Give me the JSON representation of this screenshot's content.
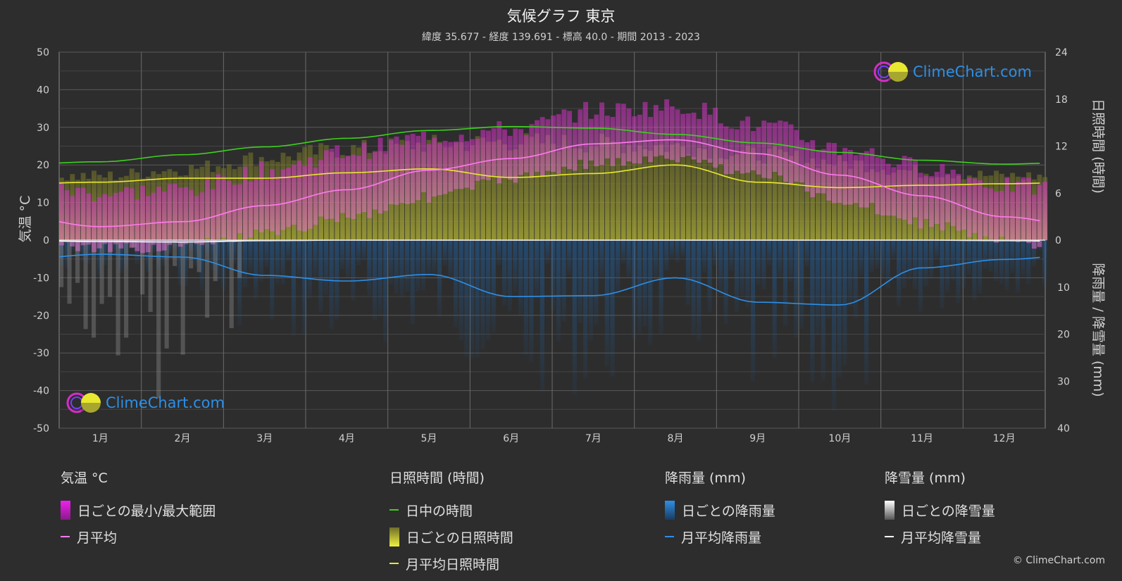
{
  "title": "気候グラフ 東京",
  "subtitle": "緯度 35.677 - 経度 139.691 - 標高 40.0 - 期間 2013 - 2023",
  "copyright": "© ClimeChart.com",
  "logo_text": "ClimeChart.com",
  "colors": {
    "background": "#2d2d2d",
    "grid": "#5a5a5a",
    "daylight": "#3ecf1e",
    "sunshine_daily": "#9e9e32",
    "sunshine_monthly": "#e8e830",
    "temp_range": "#d42ec8",
    "temp_mean": "#ff7af0",
    "rain_daily": "#1e5fa0",
    "rain_monthly": "#2e8fe6",
    "snow_daily": "#9a9a9a",
    "snow_monthly": "#ffffff"
  },
  "chart_data": {
    "type": "line",
    "months": [
      "1月",
      "2月",
      "3月",
      "4月",
      "5月",
      "6月",
      "7月",
      "8月",
      "9月",
      "10月",
      "11月",
      "12月"
    ],
    "left_axis": {
      "label": "気温 °C",
      "ticks": [
        "50",
        "40",
        "30",
        "20",
        "10",
        "0",
        "-10",
        "-20",
        "-30",
        "-40",
        "-50"
      ],
      "ylim": [
        -50,
        50
      ]
    },
    "right_axis_top": {
      "label": "日照時間 (時間)",
      "ticks": [
        "24",
        "18",
        "12",
        "6",
        "0"
      ],
      "ylim": [
        0,
        24
      ]
    },
    "right_axis_bottom": {
      "label": "降雨量 / 降雪量 (mm)",
      "ticks": [
        "10",
        "20",
        "30",
        "40"
      ],
      "ylim": [
        0,
        40
      ]
    },
    "series": [
      {
        "name": "日中の時間",
        "unit": "hours",
        "values": [
          10.0,
          10.9,
          11.9,
          13.0,
          14.0,
          14.5,
          14.3,
          13.5,
          12.4,
          11.2,
          10.2,
          9.7
        ]
      },
      {
        "name": "月平均日照時間",
        "unit": "hours",
        "values": [
          7.4,
          7.9,
          7.9,
          8.6,
          9.1,
          8.0,
          8.5,
          9.6,
          7.4,
          6.7,
          7.0,
          7.2
        ]
      },
      {
        "name": "月平均",
        "unit": "°C",
        "values": [
          3.6,
          4.9,
          9.2,
          13.4,
          18.6,
          21.7,
          25.6,
          26.7,
          23.0,
          17.3,
          11.8,
          6.2
        ]
      },
      {
        "name": "月平均降雨量",
        "unit": "mm",
        "values": [
          3.0,
          3.6,
          7.5,
          8.7,
          7.3,
          12.0,
          11.8,
          8.0,
          13.2,
          13.8,
          5.9,
          4.1
        ]
      },
      {
        "name": "月平均降雪量",
        "unit": "mm",
        "values": [
          0.3,
          0.4,
          0.1,
          0,
          0,
          0,
          0,
          0,
          0,
          0,
          0,
          0.1
        ]
      }
    ],
    "bands": {
      "temp_range_min": [
        -1,
        0,
        3,
        8,
        13,
        18,
        22,
        23,
        19,
        12,
        6,
        1
      ],
      "temp_range_max": [
        10,
        11,
        16,
        21,
        25,
        27,
        32,
        33,
        28,
        22,
        17,
        12
      ],
      "sunshine_daily_top": [
        8.6,
        9.6,
        11.1,
        12.2,
        12.9,
        13.2,
        13.0,
        12.6,
        11.5,
        10.4,
        9.2,
        8.6
      ]
    },
    "grid": true
  },
  "legend": {
    "groups": [
      {
        "heading": "気温 °C",
        "items": [
          {
            "label": "日ごとの最小/最大範囲",
            "kind": "bar",
            "color": "#d42ec8"
          },
          {
            "label": "月平均",
            "kind": "line",
            "color": "#ff7af0"
          }
        ]
      },
      {
        "heading": "日照時間 (時間)",
        "items": [
          {
            "label": "日中の時間",
            "kind": "line",
            "color": "#3ecf1e"
          },
          {
            "label": "日ごとの日照時間",
            "kind": "bar",
            "color": "#b8b83a"
          },
          {
            "label": "月平均日照時間",
            "kind": "line",
            "color": "#e8e830"
          }
        ]
      },
      {
        "heading": "降雨量 (mm)",
        "items": [
          {
            "label": "日ごとの降雨量",
            "kind": "bar",
            "color": "#2e8fe6"
          },
          {
            "label": "月平均降雨量",
            "kind": "line",
            "color": "#2e8fe6"
          }
        ]
      },
      {
        "heading": "降雪量 (mm)",
        "items": [
          {
            "label": "日ごとの降雪量",
            "kind": "bar",
            "color": "#cfcfcf"
          },
          {
            "label": "月平均降雪量",
            "kind": "line",
            "color": "#ffffff"
          }
        ]
      }
    ]
  }
}
